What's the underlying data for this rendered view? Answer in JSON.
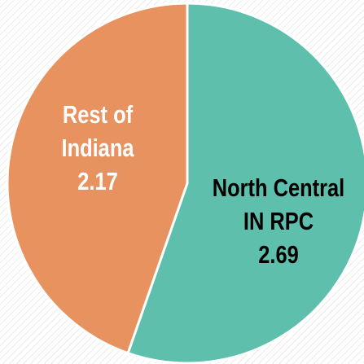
{
  "chart_data": {
    "type": "pie",
    "categories": [
      "North Central IN RPC",
      "Rest of Indiana"
    ],
    "values": [
      2.69,
      2.17
    ],
    "colors": [
      "#5fbfad",
      "#e8935f"
    ],
    "label_colors": [
      "#000000",
      "#ffffff"
    ]
  }
}
